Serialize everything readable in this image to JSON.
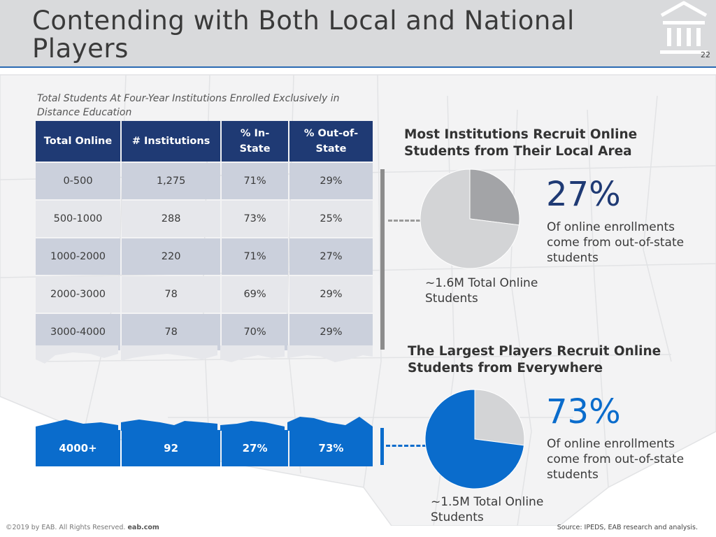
{
  "header": {
    "title": "Contending with Both Local and National Players",
    "page_number": "22"
  },
  "table": {
    "caption": "Total Students At Four-Year Institutions Enrolled Exclusively in Distance Education",
    "headers": [
      "Total Online",
      "# Institutions",
      "% In-State",
      "% Out-of-State"
    ],
    "rows": [
      [
        "0-500",
        "1,275",
        "71%",
        "29%"
      ],
      [
        "500-1000",
        "288",
        "73%",
        "25%"
      ],
      [
        "1000-2000",
        "220",
        "71%",
        "27%"
      ],
      [
        "2000-3000",
        "78",
        "69%",
        "29%"
      ],
      [
        "3000-4000",
        "78",
        "70%",
        "29%"
      ]
    ],
    "highlight_row": [
      "4000+",
      "92",
      "27%",
      "73%"
    ]
  },
  "local": {
    "heading": "Most Institutions Recruit Online Students from Their Local Area",
    "percent": "27%",
    "description": "Of online enrollments come from out-of-state students",
    "pie_label": "~1.6M Total Online Students"
  },
  "national": {
    "heading": "The Largest Players Recruit Online Students from Everywhere",
    "percent": "73%",
    "description": "Of online enrollments come from out-of-state students",
    "pie_label": "~1.5M Total Online Students"
  },
  "footer": {
    "copyright": "©2019 by EAB. All Rights Reserved.",
    "site": "eab.com",
    "source": "Source: IPEDS, EAB research and analysis."
  },
  "colors": {
    "navy": "#1f3a74",
    "blue": "#0a6ccc",
    "dark_gray": "#a3a4a7",
    "light_gray": "#d3d4d6"
  },
  "chart_data": [
    {
      "type": "pie",
      "title": "Most Institutions Recruit Online Students from Their Local Area",
      "slices": [
        {
          "label": "out-of-state",
          "value": 27,
          "color": "#a3a4a7"
        },
        {
          "label": "in-state",
          "value": 73,
          "color": "#d3d4d6"
        }
      ]
    },
    {
      "type": "pie",
      "title": "The Largest Players Recruit Online Students from Everywhere",
      "slices": [
        {
          "label": "in-state",
          "value": 27,
          "color": "#d3d4d6"
        },
        {
          "label": "out-of-state",
          "value": 73,
          "color": "#0a6ccc"
        }
      ]
    }
  ]
}
